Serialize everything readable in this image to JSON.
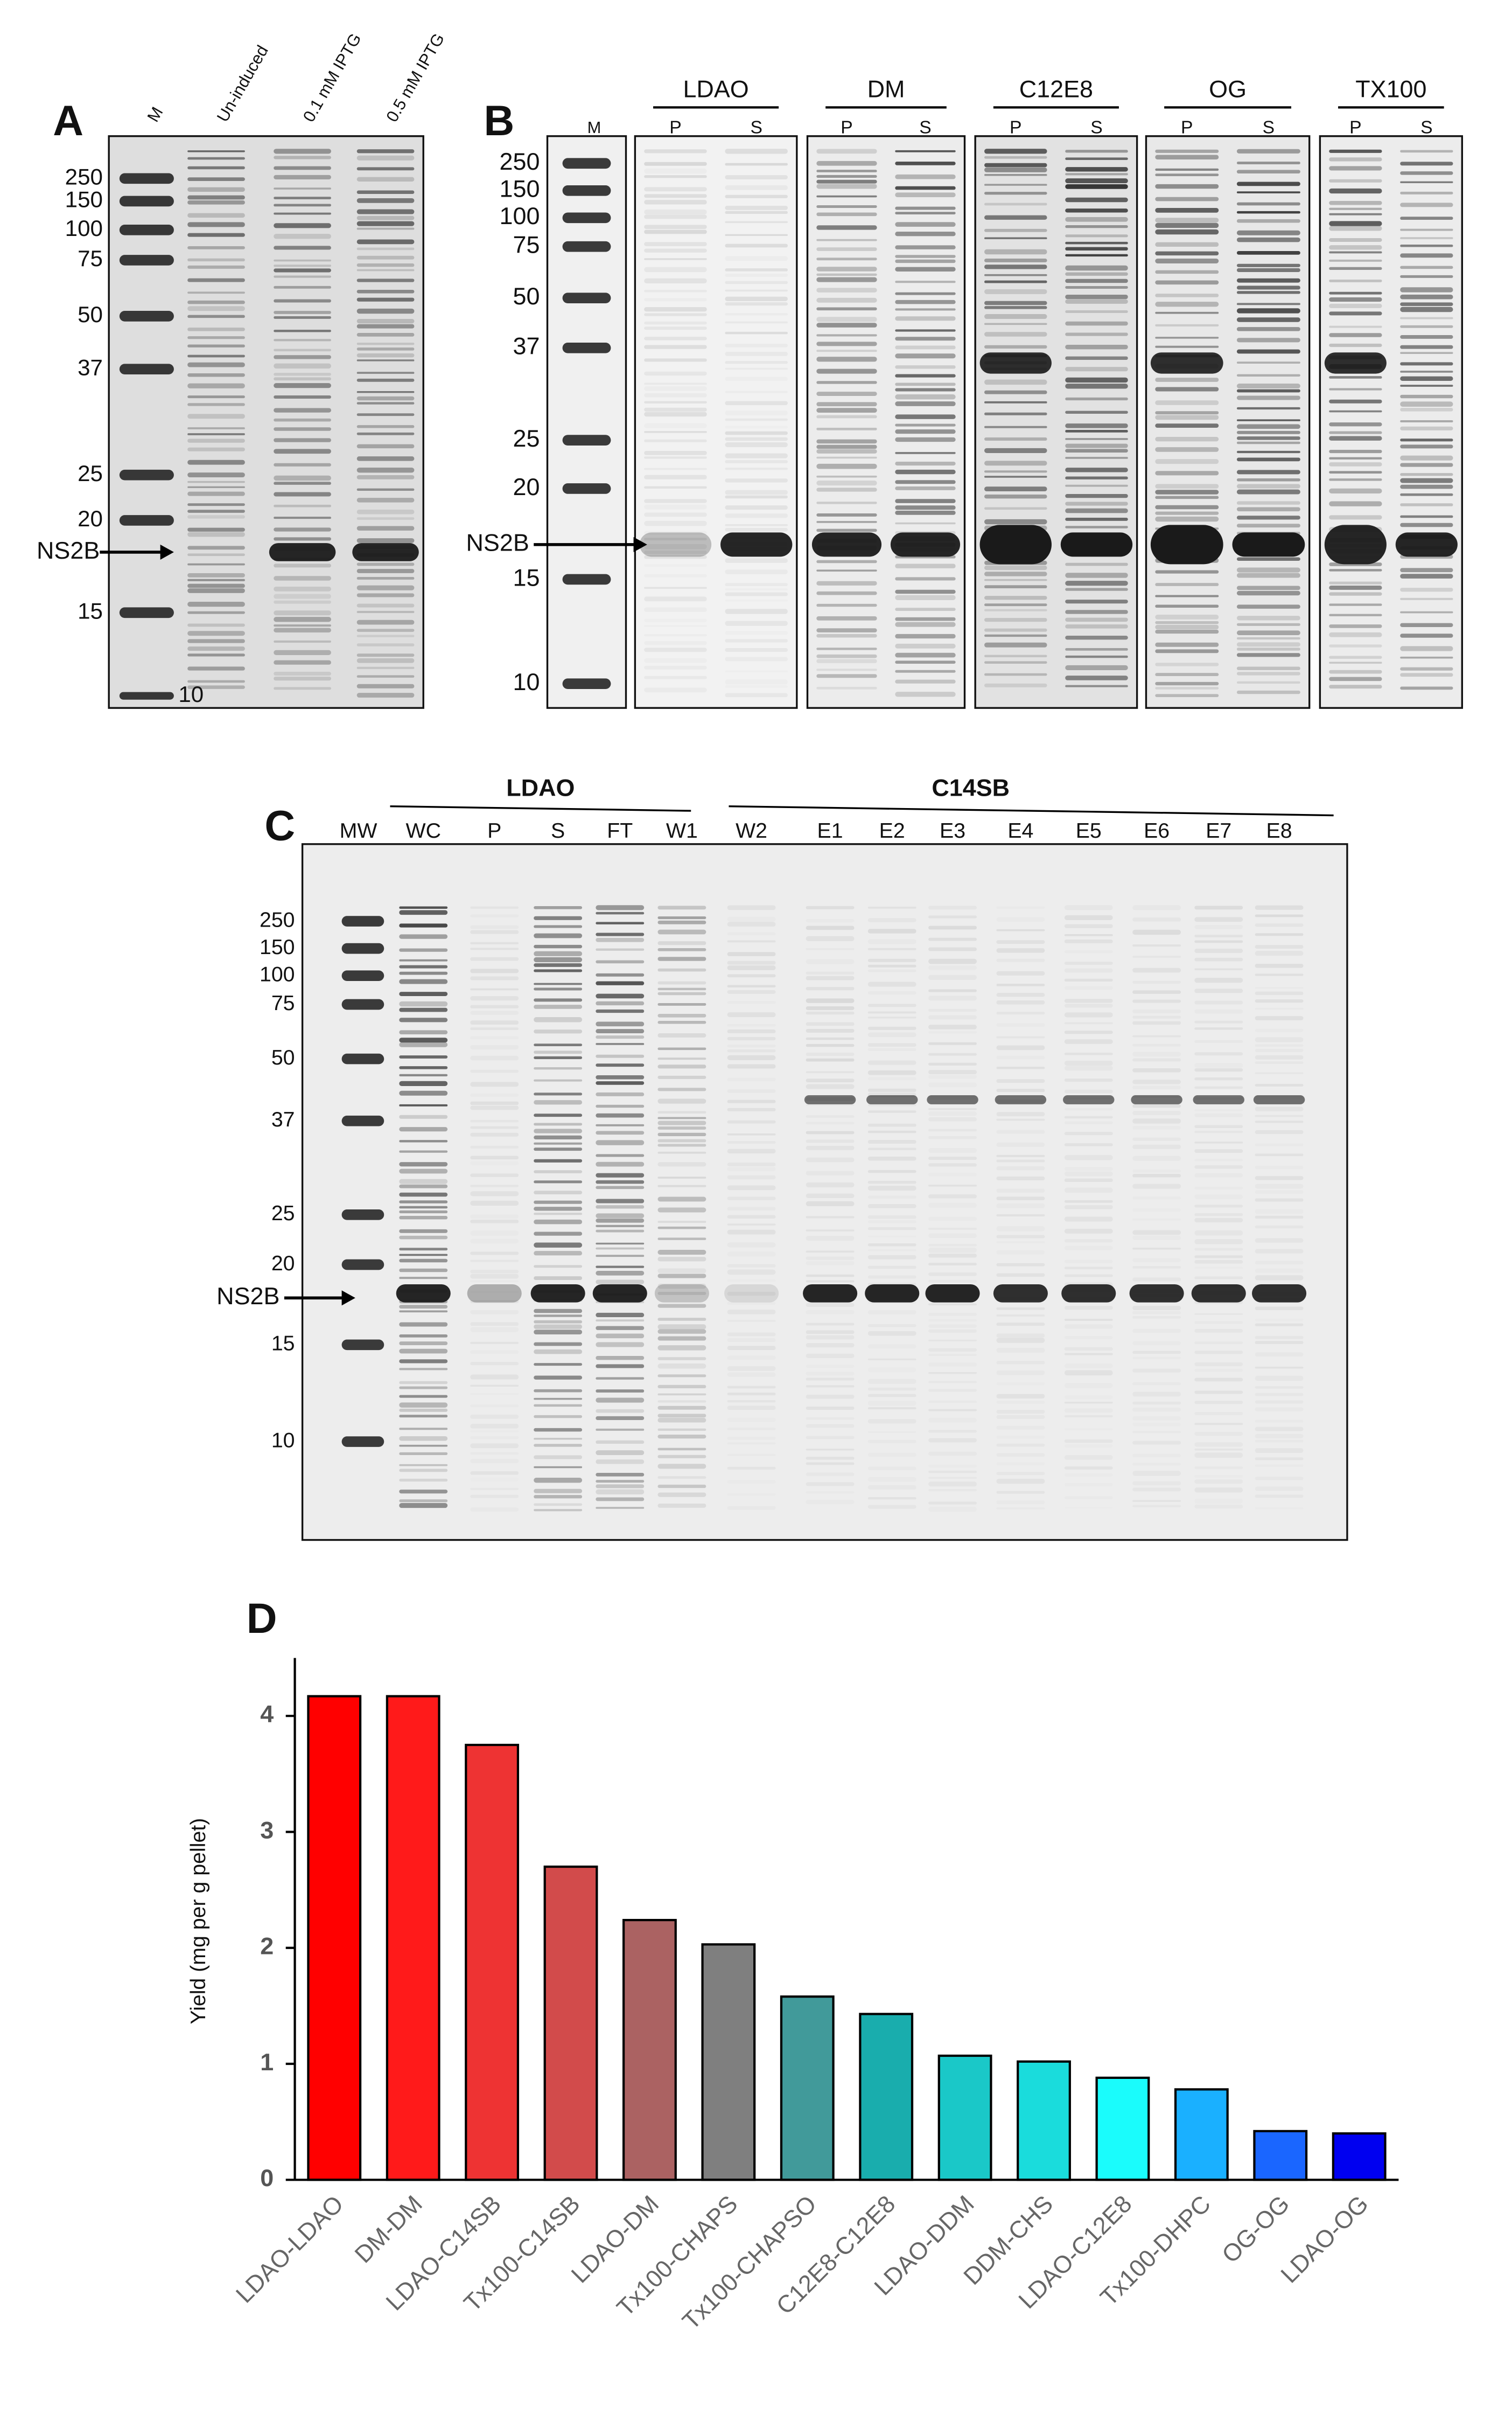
{
  "gels": {
    "A": {
      "label": "A",
      "lanes": [
        "M",
        "Un-induced",
        "0.1 mM IPTG",
        "0.5 mM IPTG"
      ],
      "markers": [
        "250",
        "150",
        "100",
        "75",
        "50",
        "37",
        "25",
        "20",
        "15",
        "10"
      ],
      "arrow": "NS2B"
    },
    "B": {
      "label": "B",
      "marker_lane": "M",
      "groups": [
        {
          "name": "LDAO",
          "lanes": [
            "P",
            "S"
          ]
        },
        {
          "name": "DM",
          "lanes": [
            "P",
            "S"
          ]
        },
        {
          "name": "C12E8",
          "lanes": [
            "P",
            "S"
          ]
        },
        {
          "name": "OG",
          "lanes": [
            "P",
            "S"
          ]
        },
        {
          "name": "TX100",
          "lanes": [
            "P",
            "S"
          ]
        }
      ],
      "markers": [
        "250",
        "150",
        "100",
        "75",
        "50",
        "37",
        "25",
        "20",
        "15",
        "10"
      ],
      "arrow": "NS2B"
    },
    "C": {
      "label": "C",
      "marker_lane": "MW",
      "groups": [
        {
          "name": "LDAO",
          "lanes": [
            "WC",
            "P",
            "S",
            "FT",
            "W1"
          ]
        },
        {
          "name": "C14SB",
          "lanes": [
            "W2",
            "E1",
            "E2",
            "E3",
            "E4",
            "E5",
            "E6",
            "E7",
            "E8"
          ]
        }
      ],
      "markers": [
        "250",
        "150",
        "100",
        "75",
        "50",
        "37",
        "25",
        "20",
        "15",
        "10"
      ],
      "arrow": "NS2B"
    }
  },
  "chart_data": {
    "type": "bar",
    "title": "D",
    "y_label": "Yield (mg per g pellet)",
    "categories": [
      "LDAO-LDAO",
      "DM-DM",
      "LDAO-C14SB",
      "Tx100-C14SB",
      "LDAO-DM",
      "Tx100-CHAPS",
      "Tx100-CHAPSO",
      "C12E8-C12E8",
      "LDAO-DDM",
      "DDM-CHS",
      "LDAO-C12E8",
      "Tx100-DHPC",
      "OG-OG",
      "LDAO-OG"
    ],
    "values": [
      4.17,
      4.17,
      3.75,
      2.7,
      2.24,
      2.03,
      1.58,
      1.43,
      1.07,
      1.02,
      0.88,
      0.78,
      0.42,
      0.4
    ],
    "colors": [
      "#ff0000",
      "#ff1a1a",
      "#ee3333",
      "#d24b4b",
      "#ab6262",
      "#7f7f7f",
      "#419a9a",
      "#19adad",
      "#1ac8c8",
      "#1adcdc",
      "#1afcfc",
      "#1ab0ff",
      "#1a66ff",
      "#0000f0"
    ],
    "ylim": [
      0,
      4.5
    ],
    "yticks": [
      0,
      1,
      2,
      3,
      4
    ]
  }
}
